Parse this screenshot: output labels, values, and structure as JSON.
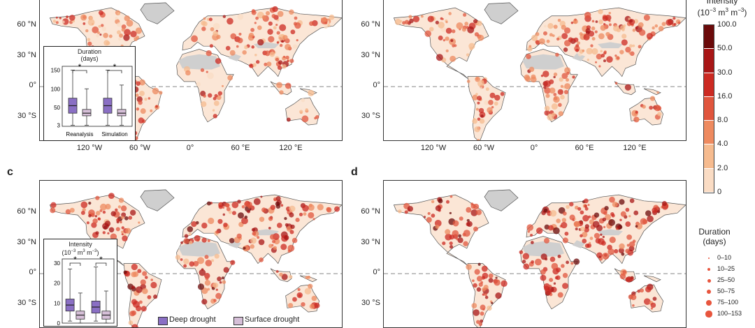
{
  "panels": [
    {
      "id": "a",
      "letter": "",
      "left": true
    },
    {
      "id": "b",
      "letter": "",
      "left": false
    },
    {
      "id": "c",
      "letter": "c",
      "left": true
    },
    {
      "id": "d",
      "letter": "d",
      "left": false
    }
  ],
  "lat_labels": [
    "60 °N",
    "30 °N",
    "0°",
    "30 °S"
  ],
  "lon_labels": [
    "120 °W",
    "60 °W",
    "0°",
    "60 °E",
    "120 °E"
  ],
  "colorbar": {
    "title_line1": "Intensity",
    "title_line2": "(10",
    "title_sup1": "−3",
    "title_mid": " m",
    "title_sup2": "3",
    "title_mid2": " m",
    "title_sup3": "−3",
    "title_end": ")",
    "ticks": [
      "100.0",
      "50.0",
      "30.0",
      "16.0",
      "8.0",
      "4.0",
      "2.0",
      "0"
    ],
    "colors": [
      "#6b0a0a",
      "#a81616",
      "#cc2a22",
      "#e0553d",
      "#ee8a5f",
      "#f6bb8f",
      "#fadcc4",
      "#fdf1e6"
    ]
  },
  "duration_legend": {
    "title_line1": "Duration",
    "title_line2": "(days)",
    "items": [
      "0–10",
      "10–25",
      "25–50",
      "50–75",
      "75–100",
      "100–153"
    ]
  },
  "inset_a": {
    "title_line1": "Duration",
    "title_line2": "(days)",
    "yticks": [
      "150",
      "100",
      "50",
      "3"
    ],
    "xlabels": [
      "Reanalysis",
      "Simulation"
    ],
    "sig": "*"
  },
  "inset_c": {
    "title_line1": "Intensity",
    "title_line2": "(10",
    "title_sup1": "−3",
    "title_mid": " m",
    "title_sup2": "3",
    "title_mid2": " m",
    "title_sup3": "−3",
    "title_end": ")",
    "yticks": [
      "30",
      "20",
      "10",
      "0"
    ],
    "sig": "*"
  },
  "bottom_legend": {
    "deep": "Deep drought",
    "surface": "Surface drought",
    "deep_color": "#8a6fc4",
    "surface_color": "#d6bfd8"
  },
  "chart_data": [
    {
      "type": "box",
      "title": "Duration (days)",
      "categories": [
        "Reanalysis",
        "Simulation"
      ],
      "series": [
        {
          "name": "Deep drought",
          "boxes": [
            {
              "whisker_low": 3,
              "q1": 35,
              "median": 55,
              "q3": 75,
              "whisker_high": 150
            },
            {
              "whisker_low": 3,
              "q1": 35,
              "median": 55,
              "q3": 75,
              "whisker_high": 150
            }
          ]
        },
        {
          "name": "Surface drought",
          "boxes": [
            {
              "whisker_low": 3,
              "q1": 28,
              "median": 35,
              "q3": 45,
              "whisker_high": 100
            },
            {
              "whisker_low": 3,
              "q1": 28,
              "median": 35,
              "q3": 45,
              "whisker_high": 110
            }
          ]
        }
      ],
      "ylim": [
        0,
        160
      ]
    },
    {
      "type": "box",
      "title": "Intensity (10−3 m3 m−3)",
      "categories": [
        "Reanalysis",
        "Simulation"
      ],
      "series": [
        {
          "name": "Deep drought",
          "boxes": [
            {
              "whisker_low": 1,
              "q1": 6,
              "median": 9,
              "q3": 12,
              "whisker_high": 27
            },
            {
              "whisker_low": 1,
              "q1": 5,
              "median": 8,
              "q3": 11,
              "whisker_high": 28
            }
          ]
        },
        {
          "name": "Surface drought",
          "boxes": [
            {
              "whisker_low": 0,
              "q1": 2,
              "median": 4,
              "q3": 6,
              "whisker_high": 15
            },
            {
              "whisker_low": 0,
              "q1": 2,
              "median": 4,
              "q3": 6,
              "whisker_high": 16
            }
          ]
        }
      ],
      "ylim": [
        0,
        32
      ]
    }
  ]
}
